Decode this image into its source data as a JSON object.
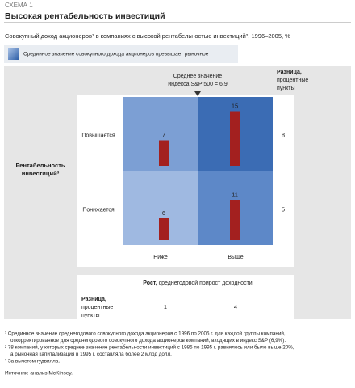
{
  "figure_label": "СХЕМА 1",
  "chart_data": {
    "type": "matrix",
    "title": "Высокая рентабельность инвестиций",
    "subtitle": "Совокупный доход акционеров¹ в компаниях с высокой рентабельностью инвестиций², 1996–2005, %",
    "legend": "Срединное значение совокупного дохода акционеров превышает рыночное",
    "annotation": [
      "Среднее значение",
      "индекса S&P 500 = 6,9"
    ],
    "y_label": [
      "Рентабельность",
      "инвестиций³"
    ],
    "x_label": {
      "bold": "Рост,",
      "rest": " среднегодовой прирост доходности"
    },
    "diff_label": {
      "bold": "Разница,",
      "rest": [
        "процентные",
        "пункты"
      ]
    },
    "rows": [
      "Повышается",
      "Понижается"
    ],
    "columns": [
      "Ниже",
      "Выше"
    ],
    "values": [
      [
        7,
        15
      ],
      [
        6,
        11
      ]
    ],
    "row_diffs": [
      8,
      5
    ],
    "column_diffs": [
      1,
      4
    ],
    "cell_colors": [
      [
        "#7c9fd4",
        "#3b6cb4"
      ],
      [
        "#9fb9e1",
        "#5d88c8"
      ]
    ],
    "bar_color": "#a3201f"
  },
  "footnotes": [
    [
      "¹ Срединное значение среднегодового совокупного дохода акционеров с 1996 по 2005 г. для каждой группы компаний,",
      "откорректированное для среднегодового совокупного дохода акционеров компаний, входящих в индекс S&P (6,9%)."
    ],
    [
      "² 78 компаний, у которых среднее значение рентабельности инвестиций с 1985 по 1995 г. равнялось или было выше 20%,",
      "а рыночная капитализация в 1995 г. составляла более 2 млрд долл."
    ],
    [
      "³ За вычетом гудвилла."
    ]
  ],
  "source": "Источник: анализ McKinsey."
}
